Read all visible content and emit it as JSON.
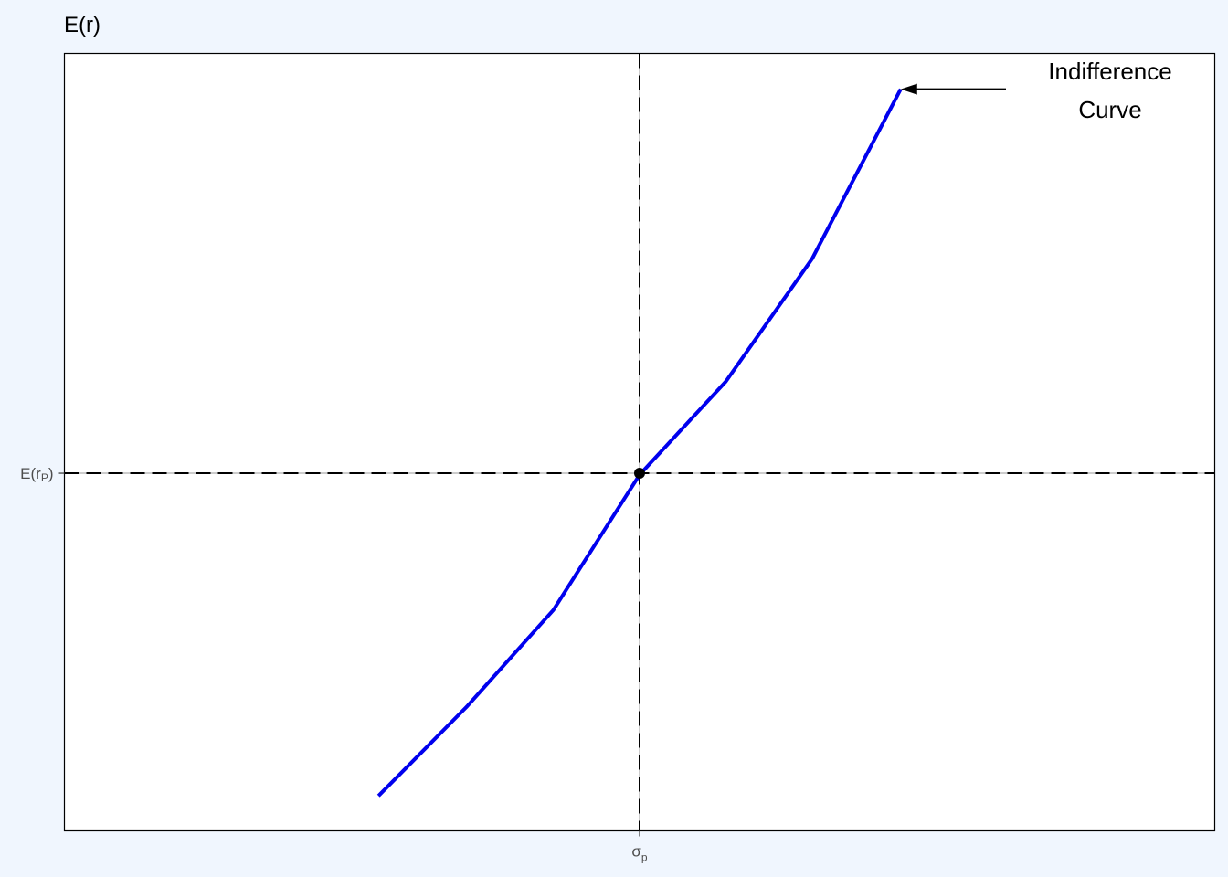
{
  "chart_data": {
    "type": "line",
    "title": "",
    "ylabel": "E(r)",
    "xlabel": "",
    "x_ticks": [
      {
        "x": 0,
        "label_main": "σ",
        "label_sub": "p"
      }
    ],
    "y_ticks": [
      {
        "y": 0,
        "label_main": "E(r",
        "label_sub": "P",
        "label_close": ")"
      }
    ],
    "xlim": [
      -0.5,
      0.5
    ],
    "ylim": [
      -0.46,
      0.54
    ],
    "reference_lines": {
      "vertical_x": 0,
      "horizontal_y": 0
    },
    "series": [
      {
        "color": "#0000ee",
        "points": [
          {
            "x": -0.227,
            "y": -0.415
          },
          {
            "x": -0.15,
            "y": -0.3
          },
          {
            "x": -0.075,
            "y": -0.176
          },
          {
            "x": 0.0,
            "y": -0.002
          },
          {
            "x": 0.075,
            "y": 0.118
          },
          {
            "x": 0.15,
            "y": 0.276
          },
          {
            "x": 0.227,
            "y": 0.494
          }
        ]
      }
    ],
    "highlight_point": {
      "x": 0,
      "y": 0
    },
    "annotation": {
      "lines": [
        "Indifference",
        "Curve"
      ],
      "arrow_to": {
        "x": 0.227,
        "y": 0.494
      }
    },
    "grid": false
  },
  "colors": {
    "page_background": "#f0f6fe",
    "panel_background": "#ffffff",
    "curve": "#0000ee",
    "reference_dash": "#000000",
    "reference_gap": "#cccccc",
    "text": "#000000",
    "tick_text": "#4d4d4d"
  }
}
